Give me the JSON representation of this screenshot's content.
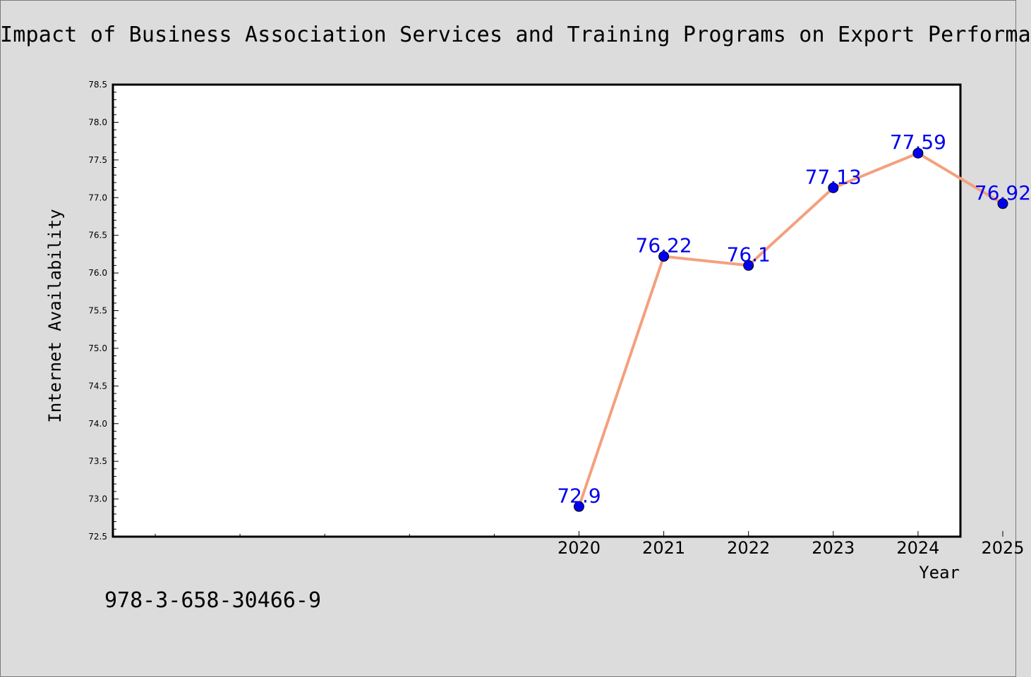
{
  "chart_data": {
    "type": "line",
    "title": "Impact of Business Association Services and Training Programs on Export Performa",
    "xlabel": "Year",
    "ylabel": "Internet Availability",
    "x": [
      "2020",
      "2021",
      "2022",
      "2023",
      "2024",
      "2025"
    ],
    "series": [
      {
        "values": [
          72.9,
          76.22,
          76.1,
          77.13,
          77.59,
          76.92
        ],
        "labels": [
          "72.9",
          "76.22",
          "76.1",
          "77.13",
          "77.59",
          "76.92"
        ]
      }
    ],
    "ylim": [
      72.5,
      78.5
    ],
    "yticks": [
      "72.5",
      "73.0",
      "73.5",
      "74.0",
      "74.5",
      "75.0",
      "75.5",
      "76.0",
      "76.5",
      "77.0",
      "77.5",
      "78.0",
      "78.5"
    ],
    "grid": false,
    "line_color": "#f4a07e",
    "marker_color": "#0000ee",
    "label_color": "#0000ee"
  },
  "footer": {
    "isbn": "978-3-658-30466-9"
  }
}
